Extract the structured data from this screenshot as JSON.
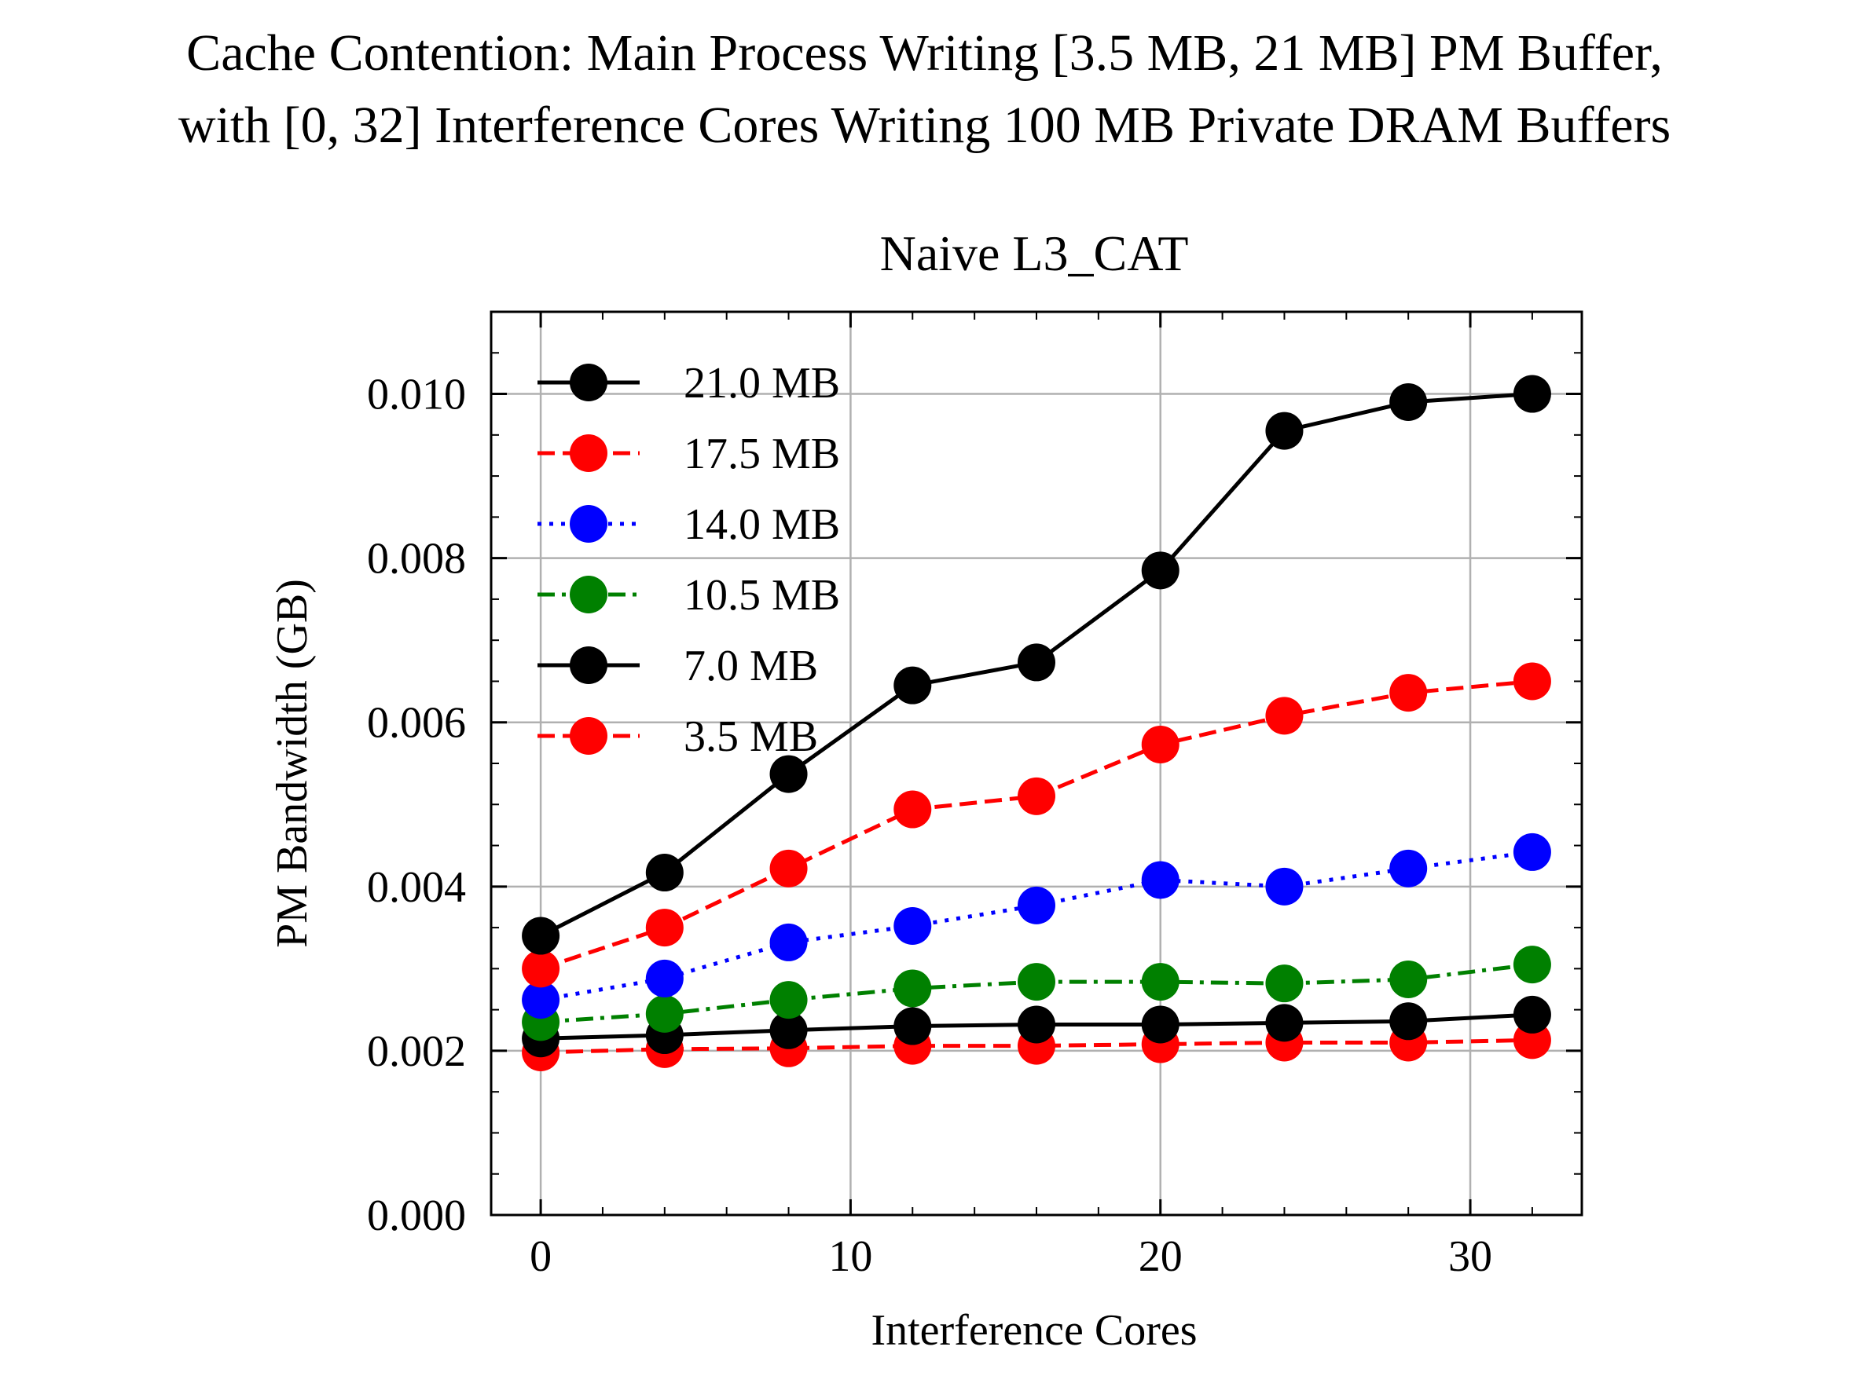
{
  "figure": {
    "suptitle_line1": "Cache Contention: Main Process Writing [3.5 MB, 21 MB] PM Buffer,",
    "suptitle_line2": "with [0, 32] Interference Cores Writing 100 MB Private DRAM Buffers"
  },
  "chart_data": {
    "type": "line",
    "title": "Naive L3_CAT",
    "xlabel": "Interference Cores",
    "ylabel": "PM Bandwidth (GB)",
    "xlim": [
      -1.6,
      33.6
    ],
    "ylim": [
      0.0,
      0.011
    ],
    "xticks": [
      0,
      10,
      20,
      30
    ],
    "xtick_labels": [
      "0",
      "10",
      "20",
      "30"
    ],
    "yticks": [
      0.0,
      0.002,
      0.004,
      0.006,
      0.008,
      0.01
    ],
    "ytick_labels": [
      "0.000",
      "0.002",
      "0.004",
      "0.006",
      "0.008",
      "0.010"
    ],
    "grid": true,
    "legend_position": "upper-left",
    "x": [
      0,
      4,
      8,
      12,
      16,
      20,
      24,
      28,
      32
    ],
    "series": [
      {
        "name": "21.0 MB",
        "color": "#000000",
        "linestyle": "solid",
        "values": [
          0.0034,
          0.00417,
          0.00537,
          0.00645,
          0.00673,
          0.00785,
          0.00955,
          0.0099,
          0.01
        ]
      },
      {
        "name": "17.5 MB",
        "color": "#ff0000",
        "linestyle": "dashed",
        "values": [
          0.003,
          0.0035,
          0.00422,
          0.00494,
          0.0051,
          0.00573,
          0.00608,
          0.00636,
          0.0065
        ]
      },
      {
        "name": "14.0 MB",
        "color": "#0000ff",
        "linestyle": "dotted",
        "values": [
          0.00262,
          0.00288,
          0.00332,
          0.00352,
          0.00377,
          0.00408,
          0.004,
          0.00422,
          0.00442
        ]
      },
      {
        "name": "10.5 MB",
        "color": "#008000",
        "linestyle": "dashdot",
        "values": [
          0.00235,
          0.00245,
          0.00262,
          0.00276,
          0.00284,
          0.00284,
          0.00282,
          0.00287,
          0.00305
        ]
      },
      {
        "name": "7.0 MB",
        "color": "#000000",
        "linestyle": "solid",
        "values": [
          0.00215,
          0.00219,
          0.00225,
          0.0023,
          0.00232,
          0.00232,
          0.00234,
          0.00236,
          0.00244
        ]
      },
      {
        "name": "3.5 MB",
        "color": "#ff0000",
        "linestyle": "dashed",
        "values": [
          0.00198,
          0.00202,
          0.00203,
          0.00206,
          0.00206,
          0.00208,
          0.0021,
          0.0021,
          0.00213
        ]
      }
    ]
  }
}
